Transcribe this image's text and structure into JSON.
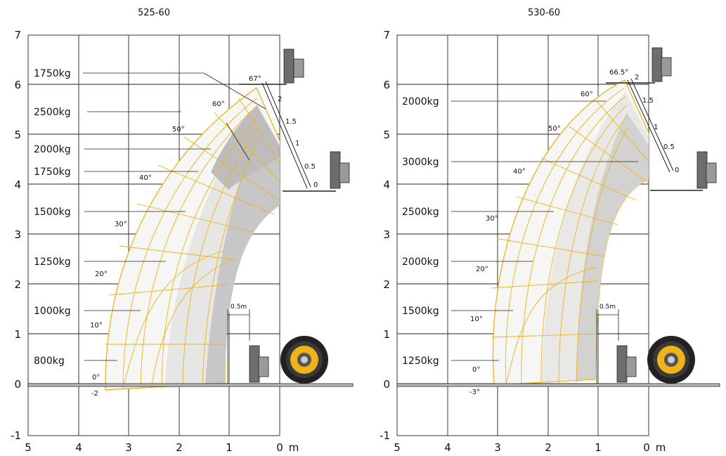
{
  "panels": [
    {
      "id": "525-60",
      "title": "525-60",
      "y_ticks": [
        "7",
        "6",
        "5",
        "4",
        "3",
        "2",
        "1",
        "0",
        "-1"
      ],
      "x_ticks": [
        "5",
        "4",
        "3",
        "2",
        "1",
        "0"
      ],
      "x_unit": "m",
      "loads": [
        "1750kg",
        "2500kg",
        "2000kg",
        "1750kg",
        "1500kg",
        "1250kg",
        "1000kg",
        "800kg"
      ],
      "angles": [
        "67°",
        "60°",
        "50°",
        "40°",
        "30°",
        "20°",
        "10°",
        "0°",
        "-2"
      ],
      "extension_marks": [
        "2",
        "1.5",
        "1",
        "0.5",
        "0"
      ],
      "fork_offset": "0.5m",
      "colors": {
        "outline": "#f2b21c",
        "zone_light": "#f6f6f4",
        "zone_mid": "#e8e8e6",
        "zone_dark": "#c4c4c4"
      }
    },
    {
      "id": "530-60",
      "title": "530-60",
      "y_ticks": [
        "7",
        "6",
        "5",
        "4",
        "3",
        "2",
        "1",
        "0",
        "-1"
      ],
      "x_ticks": [
        "5",
        "4",
        "3",
        "2",
        "1",
        "0"
      ],
      "x_unit": "m",
      "loads": [
        "2000kg",
        "3000kg",
        "2500kg",
        "2000kg",
        "1500kg",
        "1250kg"
      ],
      "angles": [
        "66.5°",
        "60°",
        "50°",
        "40°",
        "30°",
        "20°",
        "10°",
        "0°",
        "-3°"
      ],
      "extension_marks": [
        "2",
        "1.5",
        "1",
        "0.5",
        "0"
      ],
      "fork_offset": "0.5m",
      "colors": {
        "outline": "#f2b21c",
        "zone_light": "#f6f6f4",
        "zone_mid": "#e8e8e6",
        "zone_dark": "#cfcfcd"
      }
    }
  ]
}
